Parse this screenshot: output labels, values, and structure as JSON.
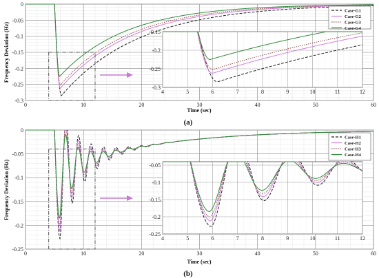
{
  "figure": {
    "panel_labels": [
      "(a)",
      "(b)"
    ]
  },
  "chart_data": [
    {
      "id": "a",
      "type": "line",
      "panel_label": "(a)",
      "title": "",
      "xlabel": "Time (sec)",
      "ylabel": "Frequency Deviation (Hz)",
      "xlim": [
        0,
        60
      ],
      "ylim": [
        -0.3,
        0
      ],
      "xticks": [
        0,
        10,
        20,
        30,
        40,
        50,
        60
      ],
      "yticks": [
        0,
        -0.05,
        -0.1,
        -0.15,
        -0.2,
        -0.25,
        -0.3
      ],
      "ytick_labels": [
        "0",
        "-0.05",
        "-0.1",
        "-0.15",
        "-0.2",
        "-0.25",
        "-0.3"
      ],
      "grid": true,
      "legend_position": "top-right",
      "event_time": 5,
      "series": [
        {
          "name": "Case-G1",
          "color": "#222222",
          "dash": "4,2",
          "nadir": -0.285,
          "nadir_time": 6.2,
          "tau": 13.5
        },
        {
          "name": "Case-G2",
          "color": "#d080e0",
          "dash": "",
          "nadir": -0.262,
          "nadir_time": 6.0,
          "tau": 12.5
        },
        {
          "name": "Case-G3",
          "color": "#9a4a4a",
          "dash": "1.5,1.5",
          "nadir": -0.252,
          "nadir_time": 6.0,
          "tau": 12.0
        },
        {
          "name": "Case-G4",
          "color": "#2e8b3a",
          "dash": "",
          "nadir": -0.225,
          "nadir_time": 5.9,
          "tau": 11.5
        }
      ],
      "inset": {
        "xlim": [
          4,
          12
        ],
        "ylim": [
          -0.3,
          -0.15
        ],
        "xticks": [
          4,
          5,
          6,
          7,
          8,
          9,
          10,
          11,
          12
        ],
        "yticks": [
          -0.15,
          -0.2,
          -0.25,
          -0.3
        ],
        "ytick_labels": [
          "-0.15",
          "-0.2",
          "-0.25",
          "-0.3"
        ]
      },
      "zoom_box": {
        "x": [
          4,
          12
        ],
        "y": [
          -0.3,
          -0.15
        ]
      }
    },
    {
      "id": "b",
      "type": "line",
      "panel_label": "(b)",
      "title": "",
      "xlabel": "Time (sec)",
      "ylabel": "Frequency Deviation (Hz)",
      "xlim": [
        0,
        60
      ],
      "ylim": [
        -0.25,
        0
      ],
      "xticks": [
        0,
        10,
        20,
        30,
        40,
        50,
        60
      ],
      "yticks": [
        0,
        -0.05,
        -0.1,
        -0.15,
        -0.2,
        -0.25
      ],
      "ytick_labels": [
        "0",
        "-0.05",
        "-0.1",
        "-0.15",
        "-0.2",
        "-0.25"
      ],
      "grid": true,
      "legend_position": "top-right",
      "event_time": 5,
      "series": [
        {
          "name": "Case-H1",
          "color": "#222222",
          "dash": "4,2",
          "nadir": -0.228,
          "nadir_time": 5.95,
          "osc_amp": 0.135,
          "damp": 0.28
        },
        {
          "name": "Case-H2",
          "color": "#d080e0",
          "dash": "",
          "nadir": -0.212,
          "nadir_time": 5.92,
          "osc_amp": 0.122,
          "damp": 0.3
        },
        {
          "name": "Case-H3",
          "color": "#9a4a4a",
          "dash": "1.5,1.5",
          "nadir": -0.2,
          "nadir_time": 5.9,
          "osc_amp": 0.112,
          "damp": 0.32
        },
        {
          "name": "Case-H4",
          "color": "#2e8b3a",
          "dash": "",
          "nadir": -0.185,
          "nadir_time": 5.88,
          "osc_amp": 0.1,
          "damp": 0.34
        }
      ],
      "inset": {
        "xlim": [
          4,
          12
        ],
        "ylim": [
          -0.25,
          -0.04
        ],
        "xticks": [
          4,
          5,
          6,
          7,
          8,
          9,
          10,
          11,
          12
        ],
        "yticks": [
          -0.05,
          -0.1,
          -0.15,
          -0.2,
          -0.25
        ],
        "ytick_labels": [
          "-0.05",
          "-0.1",
          "-0.15",
          "-0.2",
          "-0.25"
        ]
      },
      "zoom_box": {
        "x": [
          4,
          12
        ],
        "y": [
          -0.25,
          -0.04
        ]
      }
    }
  ]
}
